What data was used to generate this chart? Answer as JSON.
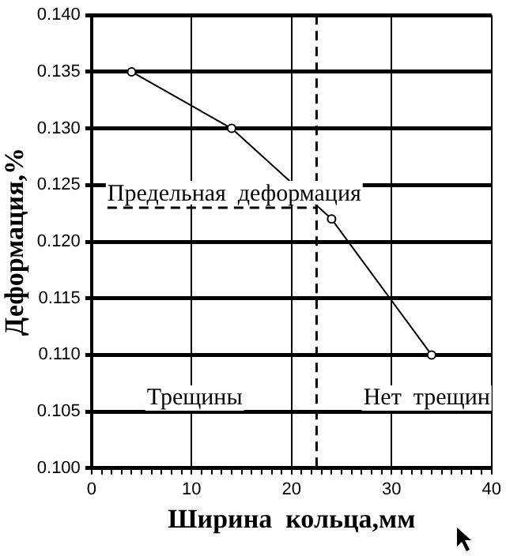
{
  "chart_data": {
    "type": "line",
    "xlabel": "Ширина  кольца,мм",
    "ylabel": "Деформация,%",
    "x": [
      4,
      14,
      24,
      34
    ],
    "series": [
      {
        "color": "#000000",
        "values": [
          0.135,
          0.13,
          0.122,
          0.11
        ]
      }
    ],
    "xlim": [
      0,
      40
    ],
    "xticks": [
      0,
      {
        "value": 1,
        "label": null
      },
      {
        "value": 2,
        "label": null
      },
      {
        "value": 3,
        "label": null
      },
      {
        "value": 4,
        "label": null
      },
      {
        "value": 5,
        "label": null
      },
      {
        "value": 6,
        "label": null
      },
      {
        "value": 7,
        "label": null
      },
      {
        "value": 8,
        "label": null
      },
      {
        "value": 9,
        "label": null
      },
      10,
      {
        "value": 11,
        "label": null
      },
      {
        "value": 12,
        "label": null
      },
      {
        "value": 13,
        "label": null
      },
      {
        "value": 14,
        "label": null
      },
      {
        "value": 15,
        "label": null
      },
      {
        "value": 16,
        "label": null
      },
      {
        "value": 17,
        "label": null
      },
      {
        "value": 18,
        "label": null
      },
      {
        "value": 19,
        "label": null
      },
      20,
      {
        "value": 21,
        "label": null
      },
      {
        "value": 22,
        "label": null
      },
      {
        "value": 23,
        "label": null
      },
      {
        "value": 24,
        "label": null
      },
      {
        "value": 25,
        "label": null
      },
      {
        "value": 26,
        "label": null
      },
      {
        "value": 27,
        "label": null
      },
      {
        "value": 28,
        "label": null
      },
      {
        "value": 29,
        "label": null
      },
      30,
      {
        "value": 31,
        "label": null
      },
      {
        "value": 32,
        "label": null
      },
      {
        "value": 33,
        "label": null
      },
      {
        "value": 34,
        "label": null
      },
      {
        "value": 35,
        "label": null
      },
      {
        "value": 36,
        "label": null
      },
      {
        "value": 37,
        "label": null
      },
      {
        "value": 38,
        "label": null
      },
      {
        "value": 39,
        "label": null
      },
      40
    ],
    "ylim": [
      0.1,
      0.14
    ],
    "yticks": [
      {
        "value": 0.1,
        "label": "0.100"
      },
      {
        "value": 0.105,
        "label": "0.105"
      },
      {
        "value": 0.11,
        "label": "0.110"
      },
      {
        "value": 0.115,
        "label": "0.115"
      },
      {
        "value": 0.12,
        "label": "0.120"
      },
      {
        "value": 0.125,
        "label": "0.125"
      },
      {
        "value": 0.13,
        "label": "0.130"
      },
      {
        "value": 0.135,
        "label": "0.135"
      },
      {
        "value": 0.14,
        "label": "0.140"
      }
    ],
    "ref_lines": [
      {
        "axis": "x",
        "value": 22.5,
        "line_style": "dashed"
      },
      {
        "axis": "y",
        "value": 0.123,
        "label": "Предельная  деформация",
        "line_style": "dashed"
      }
    ],
    "annotations": [
      "Трещины",
      "Нет  трещин"
    ],
    "grid": true,
    "legend": false,
    "marker": "circle",
    "line_style": "solid"
  }
}
